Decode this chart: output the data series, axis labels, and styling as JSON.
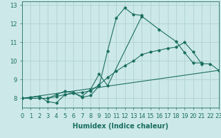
{
  "xlabel": "Humidex (Indice chaleur)",
  "xlim": [
    0,
    23
  ],
  "ylim": [
    7.5,
    13.2
  ],
  "yticks": [
    8,
    9,
    10,
    11,
    12,
    13
  ],
  "xticks": [
    0,
    1,
    2,
    3,
    4,
    5,
    6,
    7,
    8,
    9,
    10,
    11,
    12,
    13,
    14,
    15,
    16,
    17,
    18,
    19,
    20,
    21,
    22,
    23
  ],
  "background_color": "#cce8e8",
  "grid_color": "#aacccc",
  "line_color": "#1a6e60",
  "line1_x": [
    0,
    1,
    2,
    3,
    4,
    5,
    6,
    7,
    8,
    9,
    10,
    11,
    12,
    13,
    14
  ],
  "line1_y": [
    8.0,
    8.05,
    8.1,
    7.82,
    7.75,
    8.2,
    8.3,
    8.05,
    8.15,
    8.65,
    10.55,
    12.3,
    12.85,
    12.5,
    12.45
  ],
  "line2_x": [
    0,
    1,
    2,
    3,
    4,
    5,
    6,
    7,
    8,
    9,
    10,
    14,
    16,
    18,
    19,
    20,
    21
  ],
  "line2_y": [
    8.0,
    8.0,
    8.0,
    8.0,
    8.2,
    8.38,
    8.3,
    8.1,
    8.48,
    9.3,
    8.68,
    12.4,
    11.7,
    11.05,
    10.45,
    9.9,
    9.9
  ],
  "line3_x": [
    0,
    1,
    2,
    3,
    4,
    5,
    6,
    7,
    8,
    9,
    10,
    11,
    12,
    13,
    14,
    15,
    16,
    17,
    18,
    19,
    20,
    21,
    22,
    23
  ],
  "line3_y": [
    8.0,
    8.0,
    8.0,
    8.0,
    8.1,
    8.2,
    8.26,
    8.32,
    8.4,
    8.72,
    9.12,
    9.45,
    9.75,
    10.0,
    10.35,
    10.48,
    10.58,
    10.68,
    10.75,
    11.0,
    10.48,
    9.85,
    9.85,
    9.5
  ],
  "line4_x": [
    0,
    23
  ],
  "line4_y": [
    8.0,
    9.5
  ],
  "font_size_label": 7,
  "font_size_tick": 6
}
